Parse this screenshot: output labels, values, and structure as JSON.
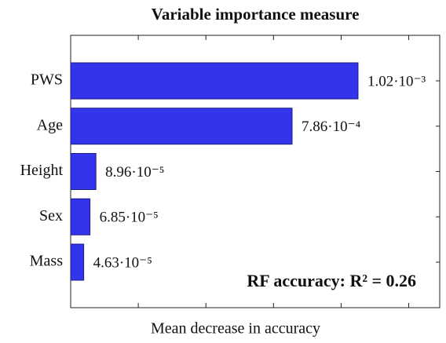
{
  "chart_data": {
    "type": "hbar",
    "title": "Variable importance measure",
    "xlabel": "Mean decrease in accuracy",
    "categories": [
      "PWS",
      "Age",
      "Height",
      "Sex",
      "Mass"
    ],
    "values": [
      0.00102,
      0.000786,
      8.96e-05,
      6.85e-05,
      4.63e-05
    ],
    "value_labels": [
      "1.02·10⁻³",
      "7.86·10⁻⁴",
      "8.96·10⁻⁵",
      "6.85·10⁻⁵",
      "4.63·10⁻⁵"
    ],
    "color": "#3434ec",
    "xlim": [
      0,
      0.00131
    ],
    "xticks": [
      0.00024,
      0.00048,
      0.00072,
      0.00096,
      0.0012
    ],
    "annotation": "RF accuracy: R² = 0.26"
  }
}
